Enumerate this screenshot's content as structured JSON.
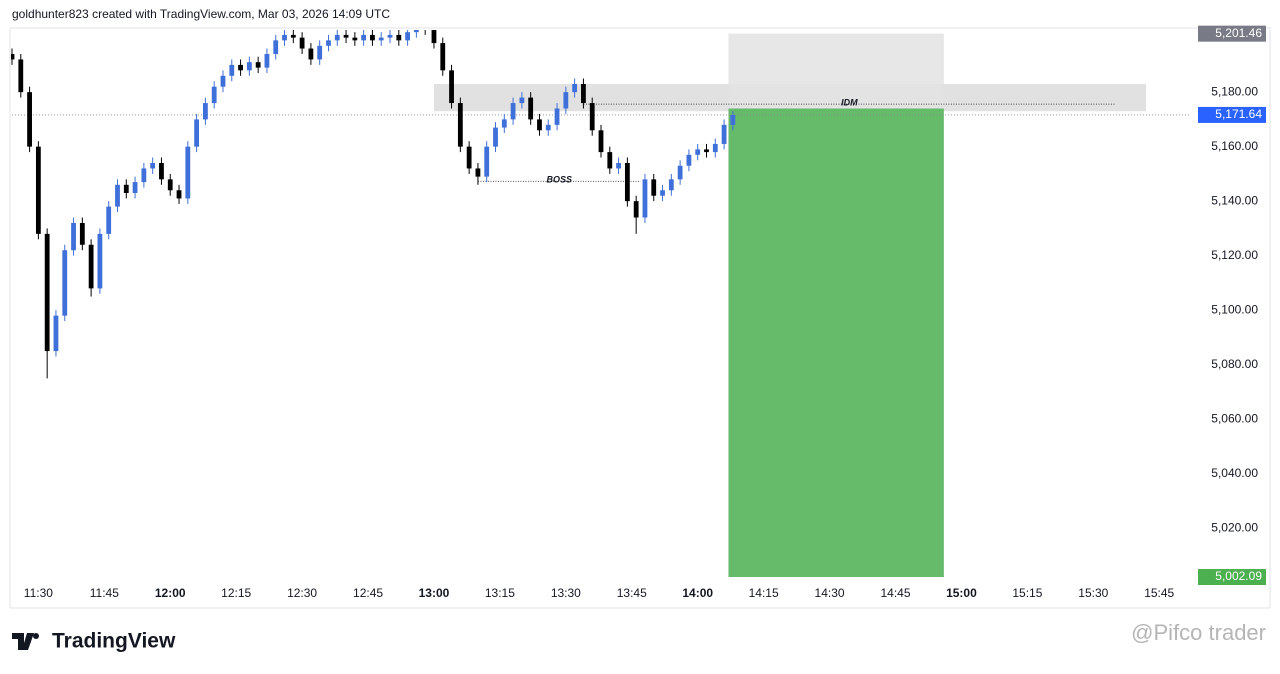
{
  "header": "goldhunter823 created with TradingView.com, Mar 03, 2026 14:09 UTC",
  "logo": "TradingView",
  "watermark": "@Pifco trader",
  "chart_data": {
    "type": "candlestick",
    "up_color": "#3f6fd8",
    "down_color": "#000000",
    "x": [
      "11:24",
      "11:26",
      "11:28",
      "11:30",
      "11:32",
      "11:34",
      "11:36",
      "11:38",
      "11:40",
      "11:42",
      "11:44",
      "11:46",
      "11:48",
      "11:50",
      "11:52",
      "11:54",
      "11:56",
      "11:58",
      "12:00",
      "12:02",
      "12:04",
      "12:06",
      "12:08",
      "12:10",
      "12:12",
      "12:14",
      "12:16",
      "12:18",
      "12:20",
      "12:22",
      "12:24",
      "12:26",
      "12:28",
      "12:30",
      "12:32",
      "12:34",
      "12:36",
      "12:38",
      "12:40",
      "12:42",
      "12:44",
      "12:46",
      "12:48",
      "12:50",
      "12:52",
      "12:54",
      "12:56",
      "12:58",
      "13:00",
      "13:02",
      "13:04",
      "13:06",
      "13:08",
      "13:10",
      "13:12",
      "13:14",
      "13:16",
      "13:18",
      "13:20",
      "13:22",
      "13:24",
      "13:26",
      "13:28",
      "13:30",
      "13:32",
      "13:34",
      "13:36",
      "13:38",
      "13:40",
      "13:42",
      "13:44",
      "13:46",
      "13:48",
      "13:50",
      "13:52",
      "13:54",
      "13:56",
      "13:58",
      "14:00",
      "14:02",
      "14:04",
      "14:06",
      "14:08"
    ],
    "open": [
      5194,
      5192,
      5180,
      5160,
      5128,
      5085,
      5098,
      5122,
      5132,
      5124,
      5108,
      5128,
      5138,
      5146,
      5143,
      5147,
      5152,
      5154,
      5148,
      5144,
      5141,
      5160,
      5170,
      5176,
      5182,
      5186,
      5190,
      5188,
      5191,
      5189,
      5194,
      5199,
      5201,
      5200,
      5196,
      5192,
      5197,
      5199,
      5201,
      5200,
      5199,
      5201,
      5199,
      5200,
      5201,
      5199,
      5202,
      5204,
      5203,
      5198,
      5188,
      5176,
      5160,
      5152,
      5149,
      5160,
      5167,
      5170,
      5176,
      5178,
      5170,
      5166,
      5168,
      5174,
      5180,
      5183,
      5176,
      5166,
      5158,
      5152,
      5154,
      5140,
      5134,
      5148,
      5142,
      5144,
      5148,
      5153,
      5157,
      5159,
      5158,
      5161,
      5168
    ],
    "high": [
      5196,
      5194,
      5182,
      5162,
      5130,
      5100,
      5124,
      5134,
      5134,
      5126,
      5130,
      5140,
      5148,
      5148,
      5149,
      5154,
      5156,
      5156,
      5150,
      5146,
      5162,
      5172,
      5178,
      5184,
      5188,
      5192,
      5192,
      5193,
      5193,
      5196,
      5201,
      5203,
      5203,
      5202,
      5198,
      5199,
      5201,
      5203,
      5203,
      5202,
      5203,
      5203,
      5202,
      5203,
      5203,
      5204,
      5206,
      5206,
      5205,
      5200,
      5190,
      5178,
      5162,
      5154,
      5162,
      5169,
      5172,
      5178,
      5180,
      5180,
      5172,
      5170,
      5176,
      5182,
      5185,
      5185,
      5178,
      5168,
      5160,
      5156,
      5156,
      5142,
      5150,
      5150,
      5146,
      5150,
      5155,
      5159,
      5161,
      5161,
      5163,
      5170,
      5173
    ],
    "low": [
      5190,
      5178,
      5158,
      5126,
      5075,
      5083,
      5096,
      5120,
      5122,
      5105,
      5106,
      5126,
      5136,
      5141,
      5141,
      5145,
      5150,
      5146,
      5142,
      5139,
      5139,
      5158,
      5168,
      5174,
      5180,
      5184,
      5186,
      5186,
      5187,
      5187,
      5192,
      5197,
      5198,
      5194,
      5190,
      5190,
      5195,
      5197,
      5198,
      5197,
      5197,
      5197,
      5197,
      5198,
      5197,
      5197,
      5200,
      5201,
      5196,
      5186,
      5174,
      5158,
      5150,
      5146,
      5147,
      5158,
      5165,
      5168,
      5174,
      5168,
      5164,
      5164,
      5166,
      5172,
      5178,
      5174,
      5164,
      5156,
      5150,
      5150,
      5138,
      5128,
      5132,
      5140,
      5140,
      5142,
      5146,
      5151,
      5155,
      5156,
      5156,
      5159,
      5166
    ],
    "close": [
      5192,
      5180,
      5160,
      5128,
      5085,
      5098,
      5122,
      5132,
      5124,
      5108,
      5128,
      5138,
      5146,
      5143,
      5147,
      5152,
      5154,
      5148,
      5144,
      5141,
      5160,
      5170,
      5176,
      5182,
      5186,
      5190,
      5188,
      5191,
      5189,
      5194,
      5199,
      5201,
      5200,
      5196,
      5192,
      5197,
      5199,
      5201,
      5200,
      5199,
      5201,
      5199,
      5200,
      5201,
      5199,
      5202,
      5204,
      5203,
      5198,
      5188,
      5176,
      5160,
      5152,
      5149,
      5160,
      5167,
      5170,
      5176,
      5178,
      5170,
      5166,
      5168,
      5174,
      5180,
      5183,
      5176,
      5166,
      5158,
      5152,
      5154,
      5140,
      5134,
      5148,
      5142,
      5144,
      5148,
      5153,
      5157,
      5159,
      5158,
      5161,
      5168,
      5171.64
    ],
    "xlim": [
      "11:24",
      "15:52"
    ],
    "xticks": [
      "11:30",
      "11:45",
      "12:00",
      "12:15",
      "12:30",
      "12:45",
      "13:00",
      "13:15",
      "13:30",
      "13:45",
      "14:00",
      "14:15",
      "14:30",
      "14:45",
      "15:00",
      "15:15",
      "15:30",
      "15:45"
    ],
    "ylim": [
      5001,
      5202.8
    ],
    "yticks": [
      {
        "value": 5020,
        "label": "5,020.00"
      },
      {
        "value": 5040,
        "label": "5,040.00"
      },
      {
        "value": 5060,
        "label": "5,060.00"
      },
      {
        "value": 5080,
        "label": "5,080.00"
      },
      {
        "value": 5100,
        "label": "5,100.00"
      },
      {
        "value": 5120,
        "label": "5,120.00"
      },
      {
        "value": 5140,
        "label": "5,140.00"
      },
      {
        "value": 5160,
        "label": "5,160.00"
      },
      {
        "value": 5180,
        "label": "5,180.00"
      }
    ],
    "last_price": {
      "value": 5171.64,
      "label": "5,171.64",
      "color": "#2962ff"
    },
    "zone": {
      "start": "13:00",
      "end": "15:42",
      "top": 5183,
      "bottom": 5173,
      "color": "#dcdcdc"
    },
    "position": {
      "start": "14:07",
      "end": "14:56",
      "entry": 5174,
      "stop": {
        "value": 5201.46,
        "label": "5,201.46"
      },
      "stop_color": "#e3e3e3",
      "label_stop_color": "#787b86",
      "target": {
        "value": 5002.09,
        "label": "5,002.09"
      },
      "target_color": "#66bb6a",
      "label_target_color": "#4caf50"
    },
    "annotations": [
      {
        "text": "IDM",
        "value": 5175.6,
        "start": "13:34",
        "end": "15:35"
      },
      {
        "text": "BOSS",
        "value": 5147.3,
        "start": "13:10",
        "end": "13:47"
      }
    ]
  }
}
